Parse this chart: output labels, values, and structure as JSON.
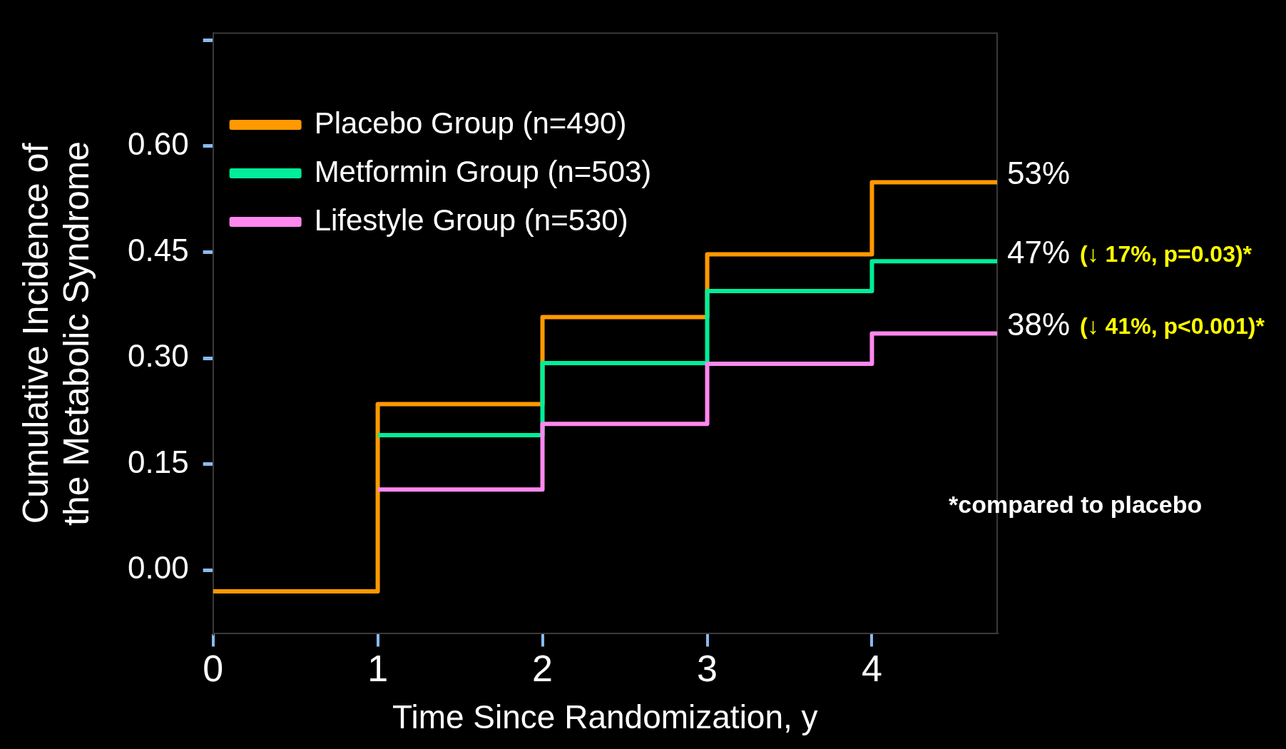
{
  "chart_data": {
    "type": "step",
    "xlabel": "Time Since Randomization, y",
    "ylabel": "Cumulative Incidence of\nthe Metabolic Syndrome",
    "x": [
      0,
      1,
      2,
      3,
      4,
      4.76
    ],
    "series": [
      {
        "name": "Placebo Group (n=490)",
        "color": "#ff9900",
        "values": [
          -0.03,
          0.235,
          0.358,
          0.447,
          0.549,
          0.549
        ]
      },
      {
        "name": "Metformin Group (n=503)",
        "color": "#00ee99",
        "values": [
          null,
          0.191,
          0.293,
          0.395,
          0.437,
          0.437
        ]
      },
      {
        "name": "Lifestyle Group (n=530)",
        "color": "#ff88ee",
        "values": [
          null,
          0.114,
          0.207,
          0.292,
          0.335,
          0.335
        ]
      }
    ],
    "xlim": [
      0,
      4.76
    ],
    "xticks": [
      0,
      1,
      2,
      3,
      4
    ],
    "ylim": [
      -0.09,
      0.76
    ],
    "yticks": [
      {
        "value": 0,
        "label": "0.00"
      },
      {
        "value": 0.15,
        "label": "0.15"
      },
      {
        "value": 0.3,
        "label": "0.30"
      },
      {
        "value": 0.45,
        "label": "0.45"
      },
      {
        "value": 0.6,
        "label": "0.60"
      },
      {
        "value": 0.75,
        "label": null
      }
    ],
    "legend": "top left",
    "grid": false,
    "marker": "none",
    "line_style": "solid",
    "annotations": [
      "53%",
      "47% (↓ 17%, p=0.03)*",
      "38% (↓ 41%, p<0.001)*",
      "*compared to placebo"
    ]
  }
}
